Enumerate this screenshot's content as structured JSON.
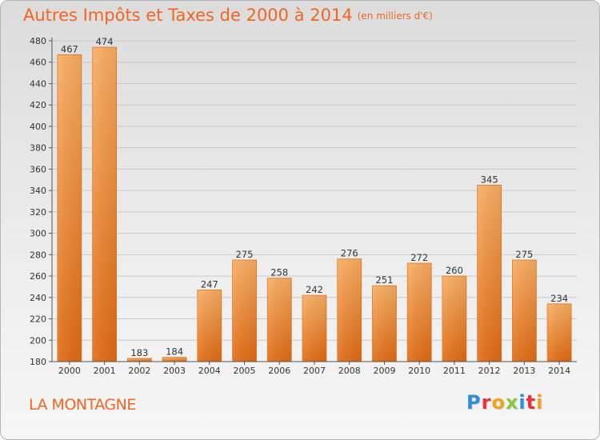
{
  "header": {
    "title": "Autres Impôts et Taxes de 2000 à 2014",
    "unit": "(en milliers d'€)"
  },
  "footer": {
    "commune": "LA MONTAGNE"
  },
  "logo": {
    "text": "Proxiti",
    "letters": [
      {
        "char": "P",
        "color": "#2e8fd6"
      },
      {
        "char": "r",
        "color": "#e8323c"
      },
      {
        "char": "o",
        "color": "#f3a21c"
      },
      {
        "char": "x",
        "color": "#8cc63e"
      },
      {
        "char": "i",
        "color": "#2e8fd6"
      },
      {
        "char": "t",
        "color": "#e8323c"
      },
      {
        "char": "i",
        "color": "#f3a21c"
      }
    ]
  },
  "colors": {
    "accent": "#f26522",
    "bar_light": "#f7a75a",
    "bar_dark": "#e8781e",
    "grid": "#c9c9c9",
    "axis": "#555555"
  },
  "chart_data": {
    "type": "bar",
    "categories": [
      "2000",
      "2001",
      "2002",
      "2003",
      "2004",
      "2005",
      "2006",
      "2007",
      "2008",
      "2009",
      "2010",
      "2011",
      "2012",
      "2013",
      "2014"
    ],
    "values": [
      467,
      474,
      183,
      184,
      247,
      275,
      258,
      242,
      276,
      251,
      272,
      260,
      345,
      275,
      234
    ],
    "ylim": [
      180,
      480
    ],
    "yticks": [
      180,
      200,
      220,
      240,
      260,
      280,
      300,
      320,
      340,
      360,
      380,
      400,
      420,
      440,
      460,
      480
    ],
    "grid": true
  }
}
